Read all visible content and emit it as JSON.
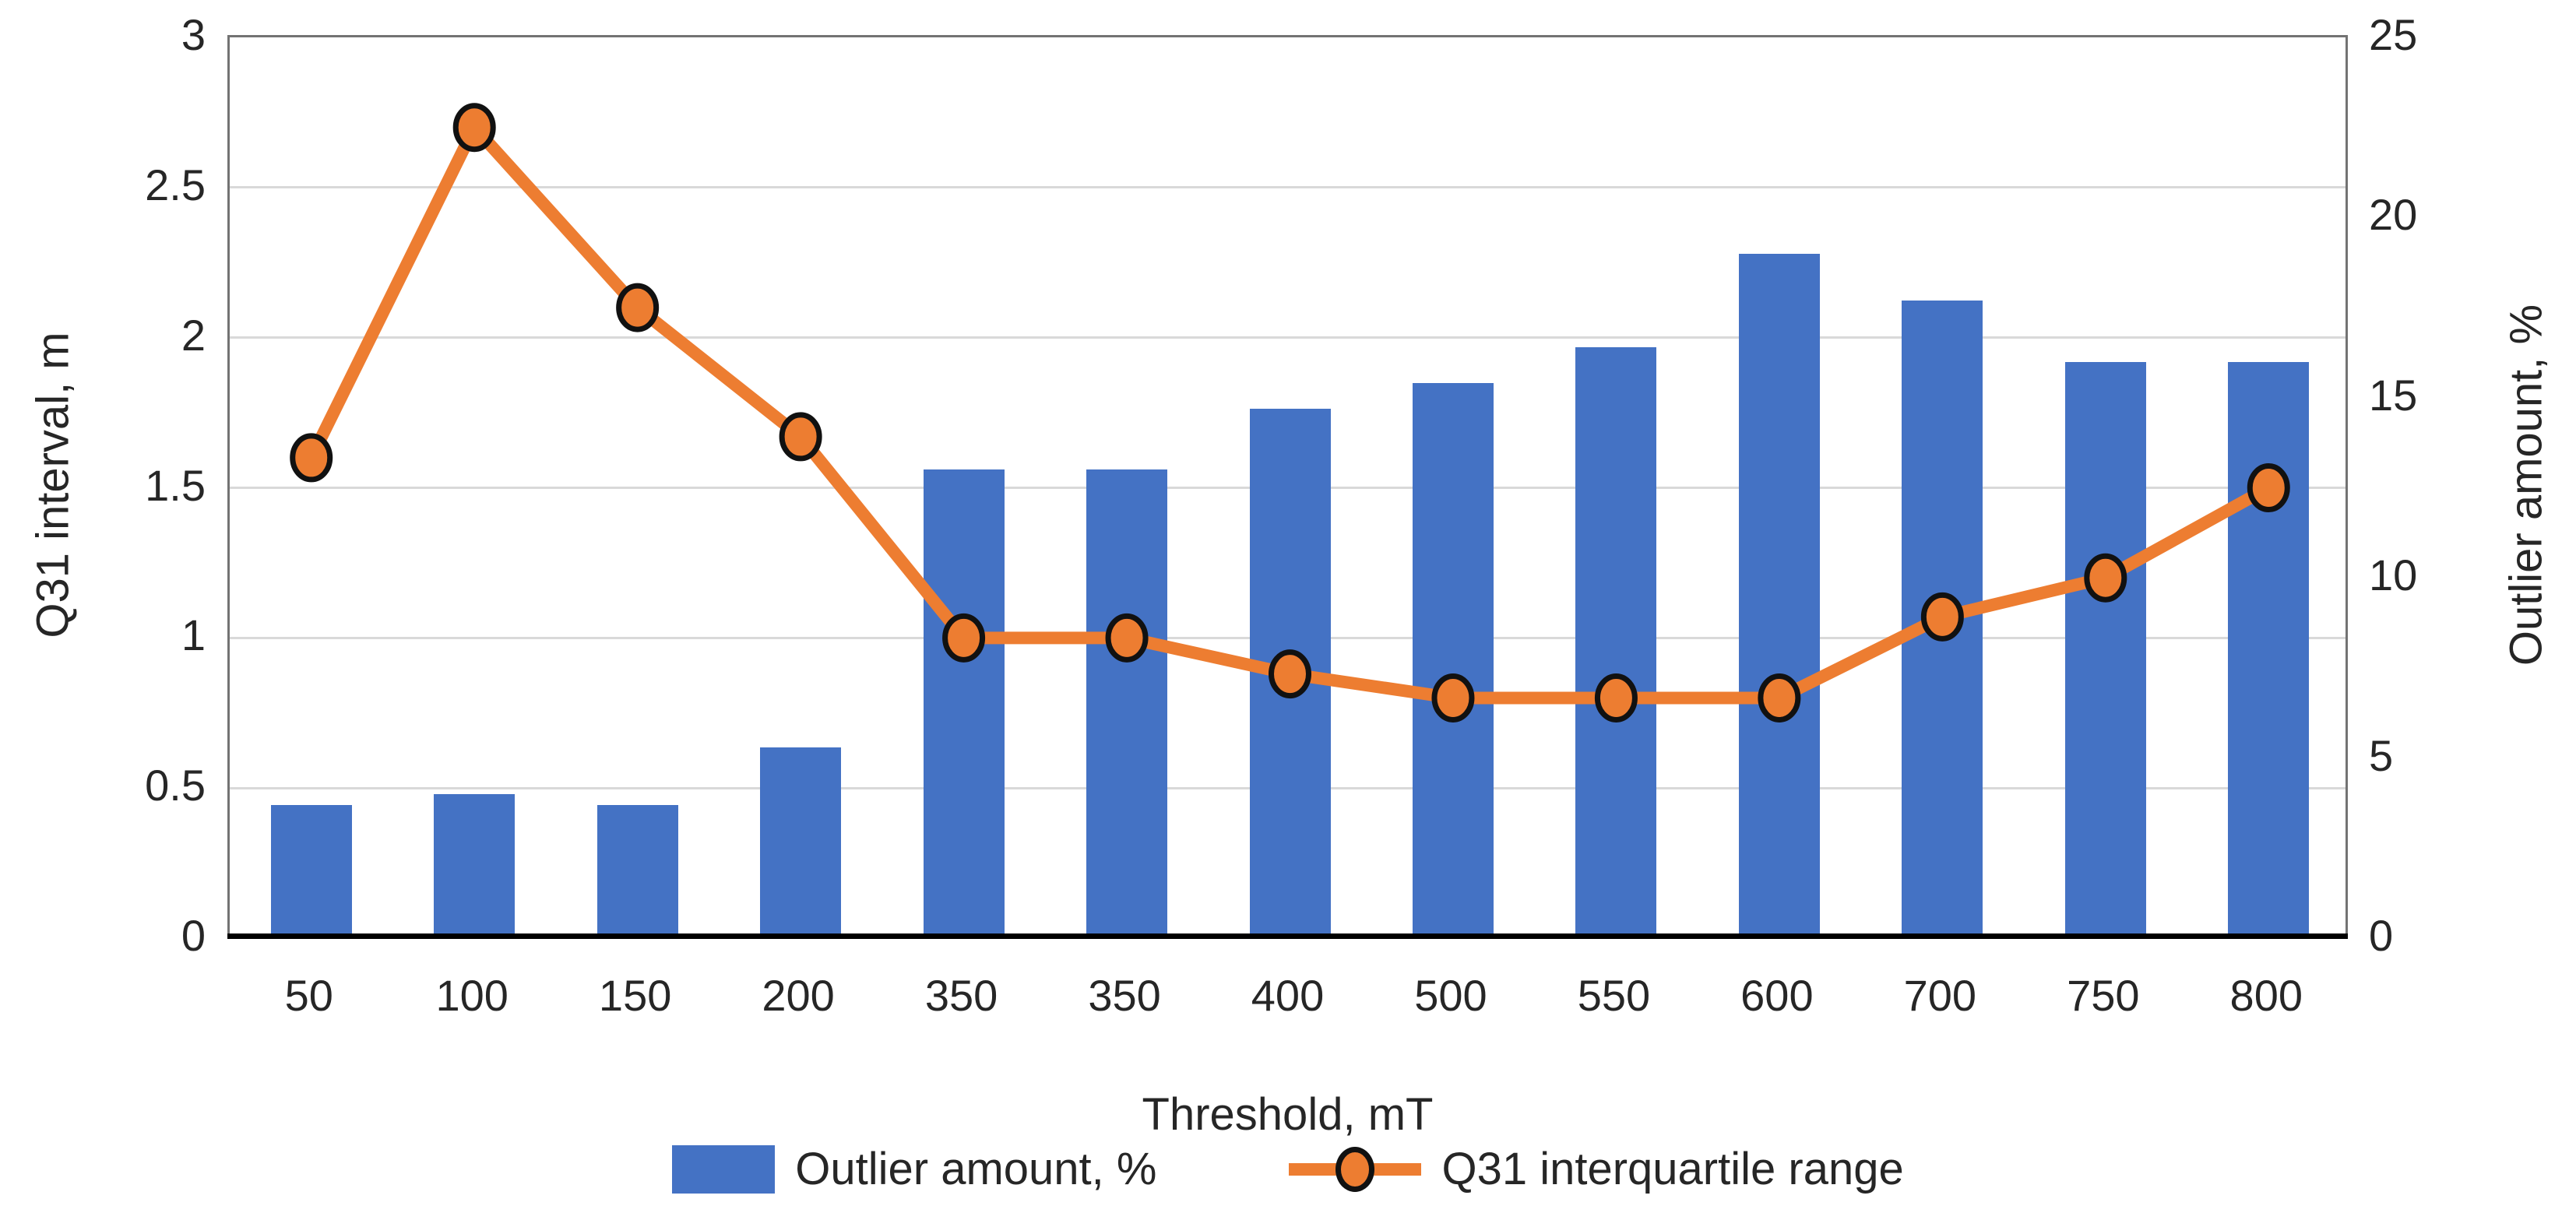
{
  "chart_data": {
    "type": "combo-bar-line",
    "categories": [
      "50",
      "100",
      "150",
      "200",
      "350",
      "350",
      "400",
      "500",
      "550",
      "600",
      "700",
      "750",
      "800"
    ],
    "series": [
      {
        "name": "Outlier amount, %",
        "type": "bar",
        "axis": "right",
        "color": "#4472C4",
        "values": [
          3.7,
          4.0,
          3.7,
          5.3,
          13.0,
          13.0,
          14.7,
          15.4,
          16.4,
          19.0,
          17.7,
          16.0,
          16.0
        ]
      },
      {
        "name": "Q31 interquartile range",
        "type": "line",
        "axis": "left",
        "color": "#ED7D31",
        "marker": "circle",
        "marker_fill": "#ED7D31",
        "marker_border": "#111111",
        "values": [
          1.6,
          2.7,
          2.1,
          1.67,
          1.0,
          1.0,
          0.88,
          0.8,
          0.8,
          0.8,
          1.07,
          1.2,
          1.5
        ]
      }
    ],
    "x_axis": {
      "title": "Threshold, mT"
    },
    "left_axis": {
      "title": "Q31 interval, m",
      "min": 0,
      "max": 3,
      "step": 0.5,
      "tick_labels": [
        "0",
        "0.5",
        "1",
        "1.5",
        "2",
        "2.5",
        "3"
      ]
    },
    "right_axis": {
      "title": "Outlier amount, %",
      "min": 0,
      "max": 25,
      "step": 5,
      "tick_labels": [
        "0",
        "5",
        "10",
        "15",
        "20",
        "25"
      ]
    },
    "legend": [
      {
        "label": "Outlier amount, %",
        "swatch": "bar",
        "color": "#4472C4"
      },
      {
        "label": "Q31 interquartile range",
        "swatch": "line-circle",
        "color": "#ED7D31"
      }
    ],
    "grid": "horizontal",
    "gridline_color": "#d9d9d9",
    "frame_color": "#737373",
    "axis_line_color": "#000000"
  }
}
